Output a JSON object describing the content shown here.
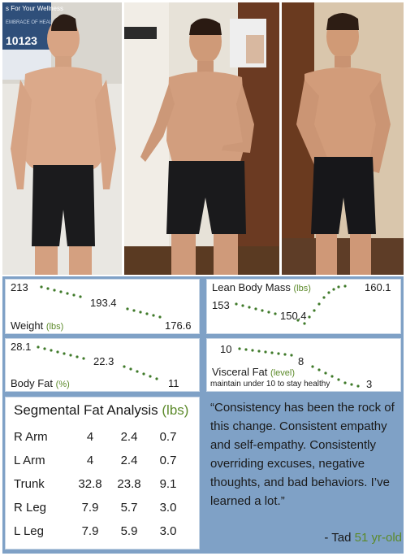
{
  "photos": {
    "sign_top_text": "s For Your Wellness",
    "sign_line": "EMBRACE OF HEALTH",
    "sign_numbers": "10123"
  },
  "weight": {
    "label": "Weight",
    "unit": "(lbs)",
    "values": [
      "213",
      "193.4",
      "176.6"
    ]
  },
  "lean_body_mass": {
    "label": "Lean Body Mass",
    "unit": "(lbs)",
    "values": [
      "153",
      "150.4",
      "160.1"
    ]
  },
  "body_fat": {
    "label": "Body Fat",
    "unit": "(%)",
    "values": [
      "28.1",
      "22.3",
      "11"
    ]
  },
  "visceral_fat": {
    "label": "Visceral  Fat",
    "unit": "(level)",
    "note": "maintain under 10 to stay healthy",
    "values": [
      "10",
      "8",
      "3"
    ]
  },
  "segmental": {
    "title": "Segmental Fat Analysis",
    "unit": "(lbs)",
    "rows": [
      {
        "name": "R Arm",
        "v1": "4",
        "v2": "2.4",
        "v3": "0.7"
      },
      {
        "name": "L Arm",
        "v1": "4",
        "v2": "2.4",
        "v3": "0.7"
      },
      {
        "name": "Trunk",
        "v1": "32.8",
        "v2": "23.8",
        "v3": "9.1"
      },
      {
        "name": "R Leg",
        "v1": "7.9",
        "v2": "5.7",
        "v3": "3.0"
      },
      {
        "name": "L Leg",
        "v1": "7.9",
        "v2": "5.9",
        "v3": "3.0"
      }
    ]
  },
  "quote": {
    "text": "“Consistency has been the rock of this change. Consistent empathy and self-empathy. Consistently overriding excuses, negative thoughts, and bad behaviors. I’ve learned a lot.”",
    "author": "- Tad",
    "age": "51 yr-old"
  },
  "colors": {
    "panel_blue": "#7fa1c6",
    "accent_green": "#5c8a2a",
    "dot_green": "#3f7a2a"
  }
}
